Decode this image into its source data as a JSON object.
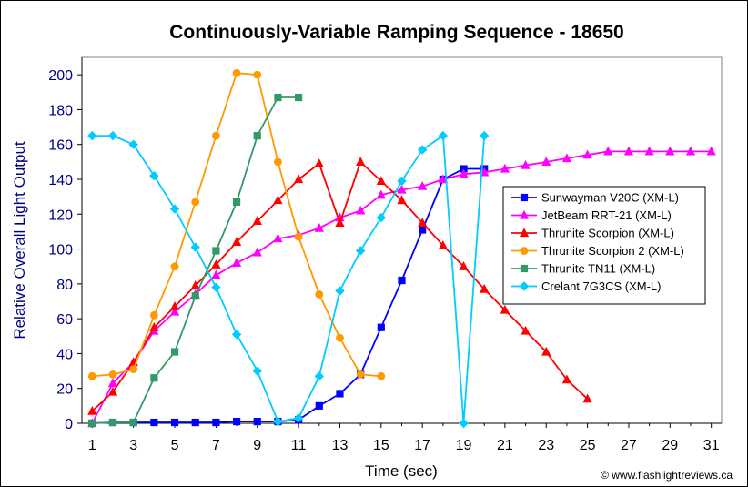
{
  "chart_data": {
    "type": "line",
    "title": "Continuously-Variable Ramping Sequence - 18650",
    "xlabel": "Time (sec)",
    "ylabel": "Relative Overall Light Output",
    "xlim": [
      0.5,
      31.5
    ],
    "ylim": [
      0,
      210
    ],
    "xticks": [
      1,
      3,
      5,
      7,
      9,
      11,
      13,
      15,
      17,
      19,
      21,
      23,
      25,
      27,
      29,
      31
    ],
    "yticks": [
      0,
      20,
      40,
      60,
      80,
      100,
      120,
      140,
      160,
      180,
      200
    ],
    "grid": false,
    "legend_position": "right",
    "credit": "© www.flashlightreviews.ca",
    "series": [
      {
        "name": "Sunwayman V20C (XM-L)",
        "color": "#0000FF",
        "marker": "square",
        "x": [
          1,
          2,
          3,
          4,
          5,
          6,
          7,
          8,
          9,
          10,
          11,
          12,
          13,
          14,
          15,
          16,
          17,
          18,
          19,
          20
        ],
        "y": [
          0,
          0.5,
          0.5,
          0.5,
          0.5,
          0.5,
          0.5,
          1,
          1,
          1,
          2,
          10,
          17,
          28,
          55,
          82,
          111,
          140,
          146,
          146
        ]
      },
      {
        "name": "JetBeam RRT-21 (XM-L)",
        "color": "#FF00FF",
        "marker": "triangle",
        "x": [
          1,
          2,
          3,
          4,
          5,
          6,
          7,
          8,
          9,
          10,
          11,
          12,
          13,
          14,
          15,
          16,
          17,
          18,
          19,
          20,
          21,
          22,
          23,
          24,
          25,
          26,
          27,
          28,
          29,
          30,
          31
        ],
        "y": [
          0,
          23,
          35,
          53,
          64,
          74,
          85,
          92,
          98,
          106,
          108,
          112,
          118,
          122,
          131,
          134,
          136,
          140,
          143,
          144,
          146,
          148,
          150,
          152,
          154,
          156,
          156,
          156,
          156,
          156,
          156
        ]
      },
      {
        "name": "Thrunite Scorpion (XM-L)",
        "color": "#FF0000",
        "marker": "triangle",
        "x": [
          1,
          2,
          3,
          4,
          5,
          6,
          7,
          8,
          9,
          10,
          11,
          12,
          13,
          14,
          15,
          16,
          17,
          18,
          19,
          20,
          21,
          22,
          23,
          24,
          25
        ],
        "y": [
          7,
          18,
          35,
          55,
          67,
          79,
          91,
          104,
          116,
          128,
          140,
          149,
          115,
          150,
          139,
          128,
          115,
          102,
          90,
          77,
          65,
          53,
          41,
          25,
          14
        ]
      },
      {
        "name": "Thrunite Scorpion 2 (XM-L)",
        "color": "#FF9900",
        "marker": "circle",
        "x": [
          1,
          2,
          3,
          4,
          5,
          6,
          7,
          8,
          9,
          10,
          11,
          12,
          13,
          14,
          15
        ],
        "y": [
          27,
          28,
          31,
          62,
          90,
          127,
          165,
          201,
          200,
          150,
          107,
          74,
          49,
          28,
          27
        ]
      },
      {
        "name": "Thrunite TN11 (XM-L)",
        "color": "#339966",
        "marker": "square",
        "x": [
          1,
          2,
          3,
          4,
          5,
          6,
          7,
          8,
          9,
          10,
          11
        ],
        "y": [
          0,
          0.5,
          0.5,
          26,
          41,
          73,
          99,
          127,
          165,
          187,
          187
        ]
      },
      {
        "name": "Crelant 7G3CS (XM-L)",
        "color": "#00CCFF",
        "marker": "diamond",
        "x": [
          1,
          2,
          3,
          4,
          5,
          6,
          7,
          8,
          9,
          10,
          11,
          12,
          13,
          14,
          15,
          16,
          17,
          18,
          19,
          20
        ],
        "y": [
          165,
          165,
          160,
          142,
          123,
          101,
          78,
          51,
          30,
          1,
          3,
          27,
          76,
          99,
          118,
          139,
          157,
          165,
          0,
          165
        ]
      }
    ]
  }
}
